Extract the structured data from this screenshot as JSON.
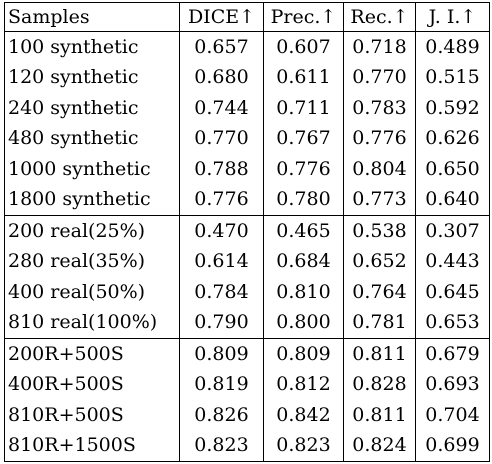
{
  "headers": [
    "Samples",
    "DICE↑",
    "Prec.↑",
    "Rec.↑",
    "J. I.↑"
  ],
  "groups": [
    {
      "rows": [
        {
          "sample": "100 synthetic",
          "values": [
            "0.657",
            "0.607",
            "0.718",
            "0.489"
          ],
          "bold": [
            false,
            false,
            false,
            false
          ]
        },
        {
          "sample": "120 synthetic",
          "values": [
            "0.680",
            "0.611",
            "0.770",
            "0.515"
          ],
          "bold": [
            false,
            false,
            false,
            false
          ]
        },
        {
          "sample": "240 synthetic",
          "values": [
            "0.744",
            "0.711",
            "0.783",
            "0.592"
          ],
          "bold": [
            false,
            false,
            false,
            false
          ]
        },
        {
          "sample": "480 synthetic",
          "values": [
            "0.770",
            "0.767",
            "0.776",
            "0.626"
          ],
          "bold": [
            false,
            false,
            false,
            false
          ]
        },
        {
          "sample": "1000 synthetic",
          "values": [
            "0.788",
            "0.776",
            "0.804",
            "0.650"
          ],
          "bold": [
            false,
            false,
            false,
            false
          ]
        },
        {
          "sample": "1800 synthetic",
          "values": [
            "0.776",
            "0.780",
            "0.773",
            "0.640"
          ],
          "bold": [
            false,
            false,
            false,
            false
          ]
        }
      ]
    },
    {
      "rows": [
        {
          "sample": "200 real(25%)",
          "values": [
            "0.470",
            "0.465",
            "0.538",
            "0.307"
          ],
          "bold": [
            false,
            false,
            false,
            false
          ]
        },
        {
          "sample": "280 real(35%)",
          "values": [
            "0.614",
            "0.684",
            "0.652",
            "0.443"
          ],
          "bold": [
            false,
            false,
            false,
            false
          ]
        },
        {
          "sample": "400 real(50%)",
          "values": [
            "0.784",
            "0.810",
            "0.764",
            "0.645"
          ],
          "bold": [
            false,
            false,
            false,
            false
          ]
        },
        {
          "sample": "810 real(100%)",
          "values": [
            "0.790",
            "0.800",
            "0.781",
            "0.653"
          ],
          "bold": [
            false,
            false,
            false,
            false
          ]
        }
      ]
    },
    {
      "rows": [
        {
          "sample": "200R+500S",
          "values": [
            "0.809",
            "0.809",
            "0.811",
            "0.679"
          ],
          "bold": [
            false,
            false,
            false,
            false
          ]
        },
        {
          "sample": "400R+500S",
          "values": [
            "0.819",
            "0.812",
            "0.828",
            "0.693"
          ],
          "bold": [
            false,
            false,
            true,
            false
          ]
        },
        {
          "sample": "810R+500S",
          "values": [
            "0.826",
            "0.842",
            "0.811",
            "0.704"
          ],
          "bold": [
            true,
            true,
            false,
            true
          ]
        },
        {
          "sample": "810R+1500S",
          "values": [
            "0.823",
            "0.823",
            "0.824",
            "0.699"
          ],
          "bold": [
            false,
            false,
            false,
            false
          ]
        }
      ]
    }
  ]
}
